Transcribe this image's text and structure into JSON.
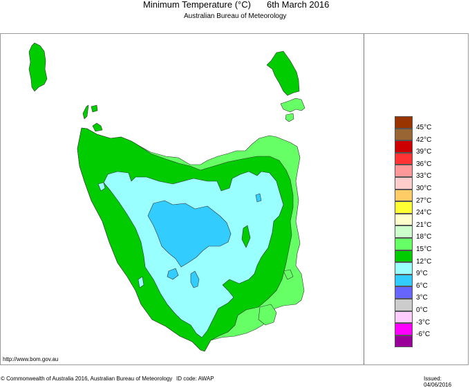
{
  "header": {
    "title": "Minimum Temperature (°C)",
    "date": "6th March 2016",
    "subtitle": "Australian Bureau of Meteorology"
  },
  "map": {
    "region": "Tasmania",
    "bands": {
      "12to15": "#00cc00",
      "15to18": "#66ff66",
      "9to12": "#99ffff",
      "6to9": "#33ccff"
    }
  },
  "legend": {
    "items": [
      {
        "label": "45°C",
        "color": "#993300"
      },
      {
        "label": "42°C",
        "color": "#996633"
      },
      {
        "label": "39°C",
        "color": "#cc0000"
      },
      {
        "label": "36°C",
        "color": "#ff3333"
      },
      {
        "label": "33°C",
        "color": "#ff9999"
      },
      {
        "label": "30°C",
        "color": "#ffcccc"
      },
      {
        "label": "27°C",
        "color": "#ffcc66"
      },
      {
        "label": "24°C",
        "color": "#ffff33"
      },
      {
        "label": "21°C",
        "color": "#ffffcc"
      },
      {
        "label": "18°C",
        "color": "#ccffcc"
      },
      {
        "label": "15°C",
        "color": "#66ff66"
      },
      {
        "label": "12°C",
        "color": "#00cc00"
      },
      {
        "label": "9°C",
        "color": "#99ffff"
      },
      {
        "label": "6°C",
        "color": "#33ccff"
      },
      {
        "label": "3°C",
        "color": "#6666ff"
      },
      {
        "label": "0°C",
        "color": "#cccccc"
      },
      {
        "label": "-3°C",
        "color": "#ffccff"
      },
      {
        "label": "-6°C",
        "color": "#ff00ff"
      },
      {
        "label": "",
        "color": "#990099"
      }
    ]
  },
  "footer": {
    "url": "http://www.bom.gov.au",
    "copyright": "© Commonwealth of Australia 2016, Australian Bureau of Meteorology",
    "id_code": "ID code: AWAP",
    "issued": "Issued: 04/06/2016"
  }
}
